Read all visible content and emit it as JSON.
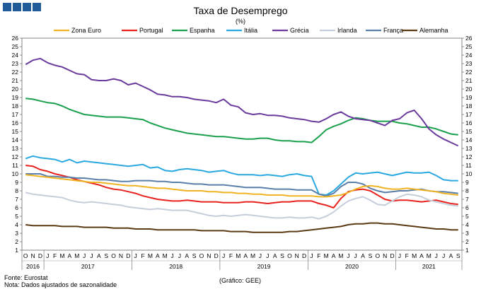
{
  "title": "Taxa de Desemprego",
  "unit": "(%)",
  "footer": {
    "source": "Fonte: Eurostat",
    "note": "Nota: Dados ajustados de sazonalidade",
    "credit": "(Gráfico: GEE)"
  },
  "brand_color": "#1f5c99",
  "chart_data": {
    "type": "line",
    "title": "Taxa de Desemprego",
    "ylabel": "(%)",
    "ylim": [
      1,
      26
    ],
    "y_ticks": [
      1,
      2,
      3,
      4,
      5,
      6,
      7,
      8,
      9,
      10,
      11,
      12,
      13,
      14,
      15,
      16,
      17,
      18,
      19,
      20,
      21,
      22,
      23,
      24,
      25,
      26
    ],
    "month_labels": [
      "O",
      "N",
      "D",
      "J",
      "F",
      "M",
      "A",
      "M",
      "J",
      "J",
      "A",
      "S",
      "O",
      "N",
      "D",
      "J",
      "F",
      "M",
      "A",
      "M",
      "J",
      "J",
      "A",
      "S",
      "O",
      "N",
      "D",
      "J",
      "F",
      "M",
      "A",
      "M",
      "J",
      "J",
      "A",
      "S",
      "O",
      "N",
      "D",
      "J",
      "F",
      "M",
      "A",
      "M",
      "J",
      "J",
      "A",
      "S",
      "O",
      "N",
      "D",
      "J",
      "F",
      "M",
      "A",
      "M",
      "J",
      "J",
      "A",
      "S"
    ],
    "years": [
      {
        "label": "2016",
        "start": 0,
        "end": 3
      },
      {
        "label": "2017",
        "start": 3,
        "end": 15
      },
      {
        "label": "2018",
        "start": 15,
        "end": 27
      },
      {
        "label": "2019",
        "start": 27,
        "end": 39
      },
      {
        "label": "2020",
        "start": 39,
        "end": 51
      },
      {
        "label": "2021",
        "start": 51,
        "end": 60
      }
    ],
    "series": [
      {
        "name": "Zona Euro",
        "color": "#f0b323",
        "values": [
          9.9,
          9.8,
          9.7,
          9.6,
          9.5,
          9.4,
          9.3,
          9.2,
          9.1,
          9.0,
          9.0,
          8.9,
          8.8,
          8.7,
          8.6,
          8.6,
          8.5,
          8.4,
          8.3,
          8.3,
          8.2,
          8.1,
          8.0,
          8.0,
          8.0,
          7.9,
          7.9,
          7.8,
          7.8,
          7.7,
          7.7,
          7.6,
          7.6,
          7.5,
          7.5,
          7.5,
          7.4,
          7.4,
          7.4,
          7.4,
          7.3,
          7.3,
          7.4,
          7.5,
          7.8,
          8.2,
          8.5,
          8.6,
          8.5,
          8.3,
          8.2,
          8.2,
          8.3,
          8.2,
          8.1,
          8.0,
          7.9,
          7.7,
          7.6,
          7.5
        ]
      },
      {
        "name": "Portugal",
        "color": "#e8231e",
        "values": [
          11.0,
          10.9,
          10.5,
          10.3,
          10.0,
          9.8,
          9.6,
          9.3,
          9.1,
          8.9,
          8.7,
          8.4,
          8.2,
          8.1,
          7.9,
          7.7,
          7.4,
          7.2,
          7.0,
          6.9,
          6.8,
          6.8,
          6.9,
          6.8,
          6.7,
          6.7,
          6.7,
          6.6,
          6.6,
          6.6,
          6.7,
          6.7,
          6.6,
          6.5,
          6.6,
          6.7,
          6.7,
          6.8,
          6.8,
          6.8,
          6.5,
          6.3,
          6.0,
          7.1,
          7.9,
          8.1,
          8.2,
          8.0,
          7.5,
          7.0,
          6.8,
          6.9,
          6.9,
          6.8,
          6.7,
          6.8,
          6.9,
          6.7,
          6.5,
          6.4
        ]
      },
      {
        "name": "Espanha",
        "color": "#1aa04c",
        "values": [
          18.9,
          18.8,
          18.6,
          18.4,
          18.3,
          18.0,
          17.6,
          17.3,
          17.0,
          16.9,
          16.8,
          16.7,
          16.7,
          16.7,
          16.6,
          16.5,
          16.4,
          16.0,
          15.7,
          15.4,
          15.2,
          15.0,
          14.8,
          14.7,
          14.6,
          14.5,
          14.4,
          14.4,
          14.3,
          14.2,
          14.1,
          14.1,
          14.2,
          14.2,
          14.0,
          13.9,
          13.9,
          13.8,
          13.8,
          13.7,
          14.4,
          15.2,
          15.6,
          15.9,
          16.3,
          16.6,
          16.5,
          16.3,
          16.2,
          16.2,
          16.2,
          16.0,
          15.9,
          15.7,
          15.5,
          15.5,
          15.3,
          15.0,
          14.7,
          14.6
        ]
      },
      {
        "name": "Itália",
        "color": "#2aa8e0",
        "values": [
          11.8,
          12.1,
          11.9,
          11.8,
          11.7,
          11.4,
          11.7,
          11.3,
          11.5,
          11.4,
          11.3,
          11.2,
          11.1,
          11.0,
          10.9,
          11.0,
          11.1,
          10.7,
          10.8,
          10.4,
          10.3,
          10.5,
          10.6,
          10.5,
          10.4,
          10.2,
          10.3,
          10.4,
          10.1,
          9.9,
          9.9,
          9.9,
          9.8,
          9.9,
          9.8,
          9.7,
          9.9,
          10.0,
          9.8,
          9.7,
          7.6,
          7.5,
          8.0,
          8.8,
          9.6,
          10.1,
          10.0,
          10.1,
          10.2,
          10.0,
          9.8,
          10.0,
          10.2,
          10.1,
          10.1,
          10.2,
          9.8,
          9.3,
          9.2,
          9.2
        ]
      },
      {
        "name": "Grécia",
        "color": "#6a3a9c",
        "values": [
          22.9,
          23.4,
          23.6,
          23.1,
          22.8,
          22.6,
          22.2,
          21.8,
          21.7,
          21.1,
          21.0,
          21.0,
          21.2,
          21.0,
          20.5,
          20.7,
          20.3,
          19.9,
          19.4,
          19.3,
          19.1,
          19.1,
          19.0,
          18.8,
          18.7,
          18.6,
          18.4,
          18.8,
          18.1,
          17.9,
          17.2,
          17.0,
          17.1,
          16.9,
          16.9,
          16.8,
          16.6,
          16.5,
          16.4,
          16.2,
          16.1,
          16.5,
          17.0,
          17.3,
          16.8,
          16.5,
          16.4,
          16.3,
          16.0,
          15.7,
          16.3,
          16.5,
          17.2,
          17.5,
          16.5,
          15.3,
          14.6,
          14.1,
          13.7,
          13.3
        ]
      },
      {
        "name": "Irlanda",
        "color": "#c6cedb",
        "values": [
          7.8,
          7.6,
          7.5,
          7.4,
          7.3,
          7.2,
          6.9,
          6.7,
          6.6,
          6.7,
          6.6,
          6.5,
          6.4,
          6.3,
          6.1,
          6.0,
          5.9,
          5.8,
          5.9,
          5.8,
          5.7,
          5.7,
          5.7,
          5.5,
          5.3,
          5.1,
          5.0,
          5.1,
          5.0,
          5.1,
          5.2,
          5.1,
          5.0,
          4.9,
          4.8,
          4.8,
          4.9,
          4.8,
          4.8,
          4.9,
          4.7,
          5.0,
          5.5,
          6.2,
          6.8,
          7.1,
          7.3,
          6.9,
          6.4,
          6.3,
          6.8,
          7.3,
          7.6,
          7.5,
          7.3,
          6.9,
          6.7,
          6.5,
          6.3,
          6.2
        ]
      },
      {
        "name": "França",
        "color": "#5a7fa8",
        "values": [
          10.0,
          10.0,
          10.0,
          9.7,
          9.7,
          9.6,
          9.6,
          9.5,
          9.5,
          9.4,
          9.3,
          9.3,
          9.2,
          9.1,
          9.1,
          9.2,
          9.2,
          9.2,
          9.1,
          9.1,
          9.0,
          9.0,
          8.9,
          8.8,
          8.8,
          8.7,
          8.7,
          8.7,
          8.6,
          8.5,
          8.4,
          8.4,
          8.4,
          8.3,
          8.2,
          8.2,
          8.2,
          8.1,
          8.1,
          8.1,
          7.6,
          7.4,
          7.7,
          8.5,
          9.0,
          9.0,
          8.8,
          8.3,
          8.0,
          7.8,
          7.9,
          8.0,
          8.0,
          8.1,
          8.2,
          8.0,
          7.9,
          7.9,
          7.8,
          7.7
        ]
      },
      {
        "name": "Alemanha",
        "color": "#5c3a14",
        "values": [
          4.0,
          3.9,
          3.9,
          3.9,
          3.9,
          3.8,
          3.8,
          3.8,
          3.7,
          3.7,
          3.7,
          3.7,
          3.6,
          3.6,
          3.6,
          3.5,
          3.5,
          3.5,
          3.4,
          3.4,
          3.4,
          3.4,
          3.4,
          3.4,
          3.3,
          3.3,
          3.3,
          3.3,
          3.2,
          3.2,
          3.2,
          3.1,
          3.1,
          3.1,
          3.1,
          3.1,
          3.2,
          3.2,
          3.3,
          3.4,
          3.5,
          3.6,
          3.7,
          3.8,
          4.0,
          4.1,
          4.1,
          4.2,
          4.2,
          4.1,
          4.1,
          4.0,
          3.9,
          3.8,
          3.7,
          3.6,
          3.5,
          3.5,
          3.4,
          3.4
        ]
      }
    ]
  }
}
